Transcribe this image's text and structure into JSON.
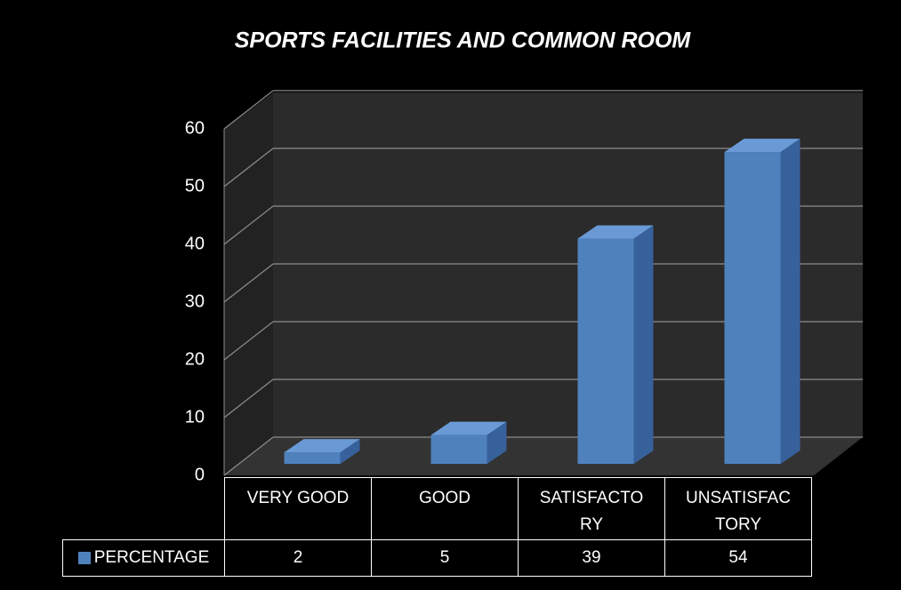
{
  "chart_data": {
    "type": "bar",
    "title": "SPORTS FACILITIES AND COMMON ROOM",
    "categories": [
      "VERY GOOD",
      "GOOD",
      "SATISFACTORY",
      "UNSATISFACTORY"
    ],
    "series": [
      {
        "name": "PERCENTAGE",
        "color": "#4f81bd",
        "values": [
          2,
          5,
          39,
          54
        ]
      }
    ],
    "ylim": [
      0,
      60
    ],
    "yticks": [
      0,
      10,
      20,
      30,
      40,
      50,
      60
    ],
    "grid": true
  }
}
